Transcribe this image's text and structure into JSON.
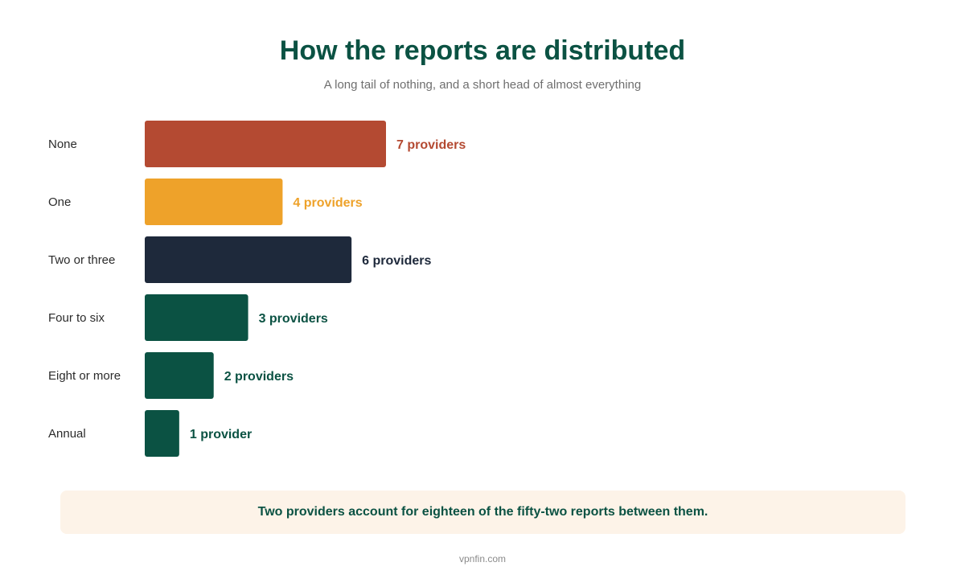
{
  "header": {
    "title": "How the reports are distributed",
    "subtitle": "A long tail of nothing, and a short head of almost everything"
  },
  "chart_data": {
    "type": "bar",
    "orientation": "horizontal",
    "categories": [
      "None",
      "One",
      "Two or three",
      "Four to six",
      "Eight or more",
      "Annual"
    ],
    "values": [
      7,
      4,
      6,
      3,
      2,
      1
    ],
    "value_labels": [
      "7 providers",
      "4 providers",
      "6 providers",
      "3 providers",
      "2 providers",
      "1 provider"
    ],
    "colors": [
      "#b44a32",
      "#eea22a",
      "#1e293b",
      "#0b5243",
      "#0b5243",
      "#0b5243"
    ],
    "xlim": [
      0,
      28
    ],
    "grid": false,
    "legend": "none"
  },
  "callout": {
    "text": "Two providers account for eighteen of the fifty-two reports between them."
  },
  "footer": {
    "source": "vpnfin.com"
  }
}
